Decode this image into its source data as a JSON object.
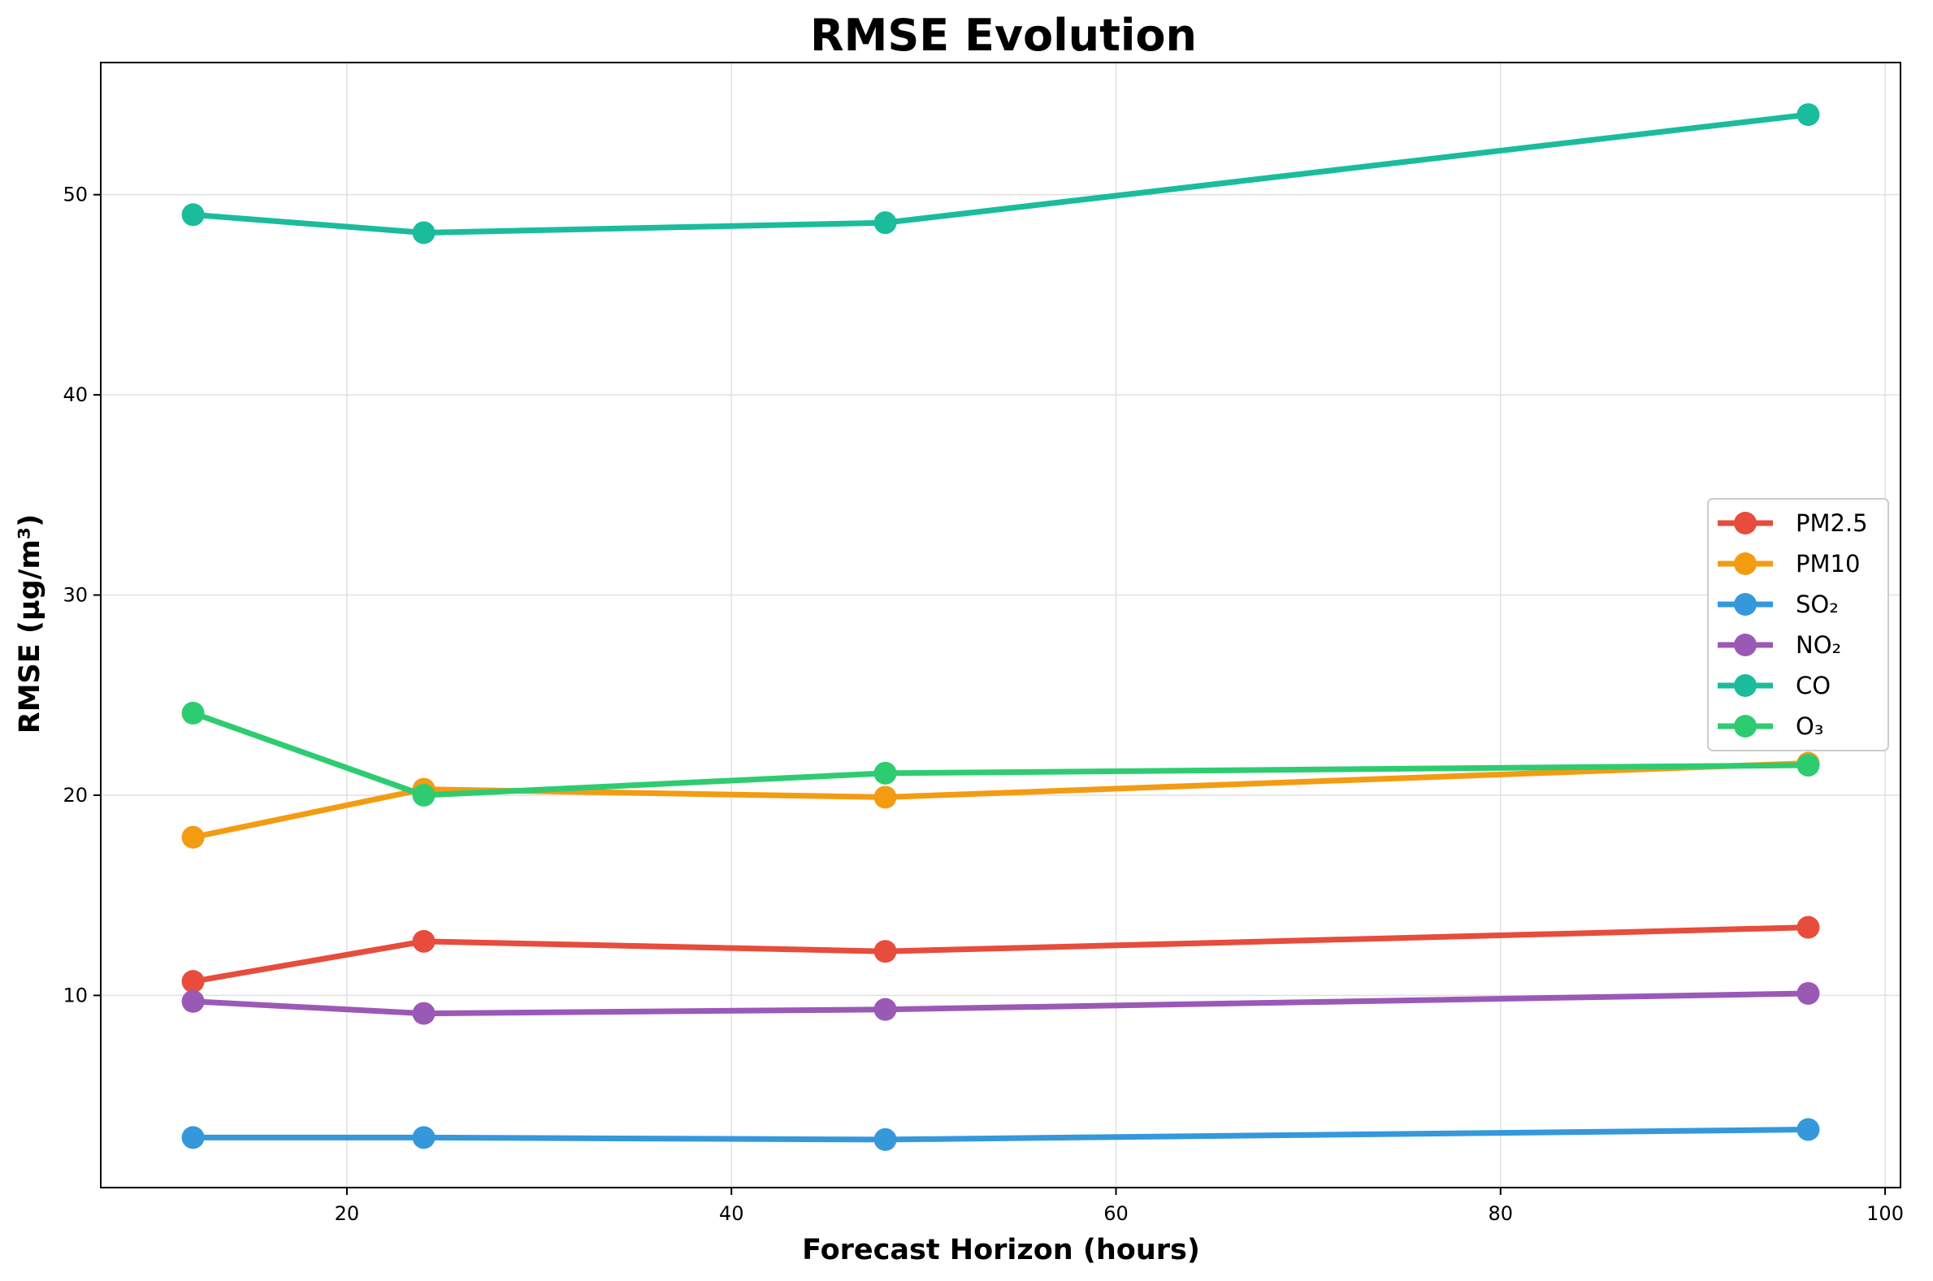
{
  "chart_data": {
    "type": "line",
    "title": "RMSE Evolution",
    "xlabel": "Forecast Horizon (hours)",
    "ylabel": "RMSE (µg/m³)",
    "x": [
      12,
      24,
      48,
      96
    ],
    "xlim": [
      7.2,
      100.8
    ],
    "ylim": [
      0.4,
      56.6
    ],
    "xticks": [
      20,
      40,
      60,
      80,
      100
    ],
    "yticks": [
      10,
      20,
      30,
      40,
      50
    ],
    "grid": true,
    "legend_position": "center-right",
    "series": [
      {
        "name": "PM2.5",
        "color": "#e74c3c",
        "values": [
          10.7,
          12.7,
          12.2,
          13.4
        ]
      },
      {
        "name": "PM10",
        "color": "#f39c12",
        "values": [
          17.9,
          20.3,
          19.9,
          21.6
        ]
      },
      {
        "name": "SO₂",
        "color": "#3498db",
        "values": [
          2.9,
          2.9,
          2.8,
          3.3
        ]
      },
      {
        "name": "NO₂",
        "color": "#9b59b6",
        "values": [
          9.7,
          9.1,
          9.3,
          10.1
        ]
      },
      {
        "name": "CO",
        "color": "#1abc9c",
        "values": [
          49.0,
          48.1,
          48.6,
          54.0
        ]
      },
      {
        "name": "O₃",
        "color": "#2ecc71",
        "values": [
          24.1,
          20.0,
          21.1,
          21.5
        ]
      }
    ]
  }
}
